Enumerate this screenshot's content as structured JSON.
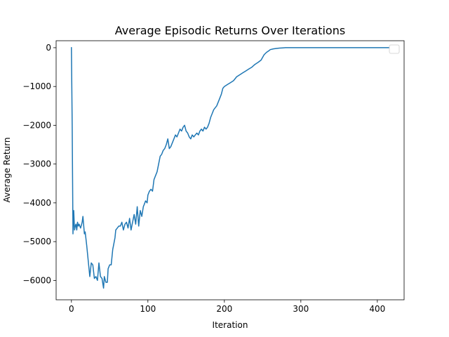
{
  "chart_data": {
    "type": "line",
    "title": "Average Episodic Returns Over Iterations",
    "xlabel": "Iteration",
    "ylabel": "Average Return",
    "xlim": [
      -20,
      435
    ],
    "ylim": [
      -6500,
      180
    ],
    "xticks": [
      0,
      100,
      200,
      300,
      400
    ],
    "yticks": [
      0,
      -1000,
      -2000,
      -3000,
      -4000,
      -5000,
      -6000
    ],
    "xtick_labels": [
      "0",
      "100",
      "200",
      "300",
      "400"
    ],
    "ytick_labels": [
      "0",
      "−1000",
      "−2000",
      "−3000",
      "−4000",
      "−5000",
      "−6000"
    ],
    "grid": false,
    "legend": {
      "location": "upper right",
      "entries": []
    },
    "colors": {
      "line": "#1f77b4",
      "frame": "#000000",
      "background": "#ffffff"
    },
    "series": [
      {
        "x": [
          0,
          1,
          2,
          3,
          4,
          5,
          6,
          7,
          8,
          9,
          10,
          12,
          14,
          15,
          17,
          18,
          20,
          22,
          24,
          26,
          28,
          30,
          32,
          34,
          36,
          38,
          40,
          42,
          43,
          45,
          47,
          48,
          50,
          52,
          54,
          55,
          57,
          58,
          60,
          62,
          64,
          66,
          68,
          70,
          72,
          74,
          76,
          78,
          80,
          82,
          84,
          86,
          88,
          90,
          92,
          94,
          95,
          97,
          99,
          100,
          102,
          104,
          106,
          108,
          110,
          112,
          114,
          116,
          118,
          120,
          122,
          124,
          126,
          128,
          130,
          132,
          134,
          136,
          138,
          140,
          142,
          144,
          146,
          148,
          150,
          152,
          154,
          156,
          158,
          160,
          162,
          164,
          166,
          168,
          170,
          172,
          174,
          176,
          178,
          180,
          182,
          184,
          186,
          188,
          190,
          192,
          194,
          196,
          198,
          200,
          204,
          208,
          212,
          216,
          220,
          224,
          228,
          232,
          236,
          240,
          244,
          248,
          250,
          252,
          255,
          258,
          260,
          264,
          268,
          272,
          276,
          280,
          284,
          288,
          292,
          296,
          300,
          304,
          308,
          312,
          316,
          320,
          324,
          328,
          332,
          336,
          340,
          344,
          348,
          352,
          356,
          360,
          365,
          370,
          375,
          380,
          385,
          390,
          395,
          400,
          405,
          410,
          415
        ],
        "y": [
          0,
          -2000,
          -4800,
          -4200,
          -4700,
          -4600,
          -4550,
          -4700,
          -4500,
          -4600,
          -4550,
          -4650,
          -4500,
          -4350,
          -4800,
          -4750,
          -5100,
          -5500,
          -5900,
          -5550,
          -5600,
          -5950,
          -5900,
          -6000,
          -5550,
          -5900,
          -5950,
          -6200,
          -5900,
          -6050,
          -6050,
          -5700,
          -5600,
          -5600,
          -5200,
          -5100,
          -4900,
          -4700,
          -4650,
          -4600,
          -4600,
          -4500,
          -4700,
          -4550,
          -4500,
          -4650,
          -4400,
          -4700,
          -4500,
          -4300,
          -4550,
          -4100,
          -4600,
          -4200,
          -4350,
          -4100,
          -4050,
          -3950,
          -4000,
          -3800,
          -3700,
          -3650,
          -3700,
          -3400,
          -3300,
          -3200,
          -3000,
          -2800,
          -2750,
          -2650,
          -2600,
          -2500,
          -2350,
          -2600,
          -2550,
          -2450,
          -2350,
          -2250,
          -2300,
          -2200,
          -2100,
          -2150,
          -2050,
          -2000,
          -2150,
          -2200,
          -2300,
          -2350,
          -2250,
          -2300,
          -2250,
          -2200,
          -2250,
          -2150,
          -2100,
          -2150,
          -2050,
          -2100,
          -2050,
          -1950,
          -1800,
          -1700,
          -1600,
          -1550,
          -1500,
          -1400,
          -1300,
          -1200,
          -1050,
          -1000,
          -950,
          -900,
          -850,
          -750,
          -700,
          -650,
          -600,
          -550,
          -500,
          -430,
          -380,
          -320,
          -250,
          -180,
          -120,
          -80,
          -50,
          -30,
          -20,
          -10,
          -5,
          0,
          0,
          0,
          0,
          0,
          0,
          0,
          0,
          0,
          0,
          0,
          0,
          0,
          0,
          0,
          0,
          0,
          0,
          0,
          0,
          0,
          0,
          0,
          0,
          0,
          0,
          0,
          0,
          0,
          0,
          0,
          0
        ]
      }
    ]
  }
}
